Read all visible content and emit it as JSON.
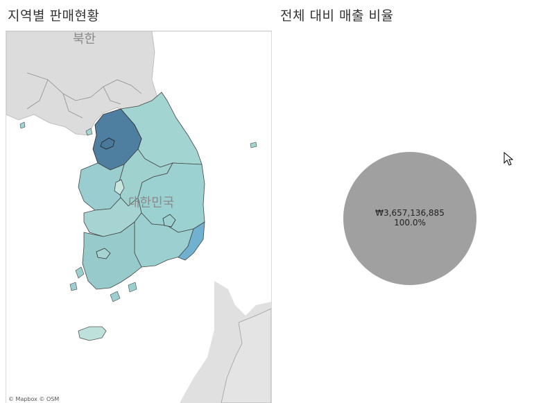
{
  "map_panel": {
    "title": "지역별 판매현황",
    "label_north": "북한",
    "label_south": "대한민국",
    "attribution": "© Mapbox © OSM",
    "colors": {
      "land_bg": "#dedede",
      "sea": "#ffffff",
      "seoul_gyeonggi": "#4e7fa0",
      "gangwon": "#a2d4d2",
      "chungbuk": "#9fd1cf",
      "chungnam": "#99cdd0",
      "jeonbuk": "#a6d4d3",
      "jeonnam": "#97cacb",
      "gyeongbuk": "#9cd1d2",
      "gyeongnam": "#9ccfcf",
      "busan": "#6fb1cf",
      "jeju": "#bfe1dc",
      "sejong": "#c7e6e0"
    }
  },
  "pie_panel": {
    "title": "전체 대비 매출 비율",
    "slice_color": "#a0a0a0",
    "value_label": "₩3,657,136,885",
    "percent_label": "100.0%",
    "percent_value": 100.0
  },
  "chart_data": {
    "type": "pie",
    "title": "전체 대비 매출 비율",
    "slices": [
      {
        "value": 3657136885,
        "value_label": "₩3,657,136,885",
        "percent": 100.0
      }
    ]
  }
}
